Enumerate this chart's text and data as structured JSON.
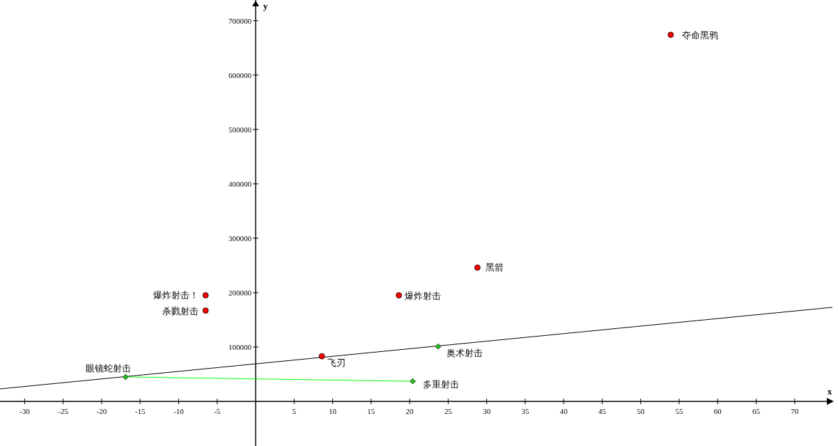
{
  "chart_data": {
    "type": "scatter",
    "xlabel": "x",
    "ylabel": "y",
    "xlim": [
      -33.2,
      74.9
    ],
    "ylim": [
      -82000,
      738000
    ],
    "xticks": [
      -30,
      -25,
      -20,
      -15,
      -10,
      -5,
      5,
      10,
      15,
      20,
      25,
      30,
      35,
      40,
      45,
      50,
      55,
      60,
      65,
      70
    ],
    "yticks": [
      100000,
      200000,
      300000,
      400000,
      500000,
      600000,
      700000
    ],
    "grid": false,
    "series": [
      {
        "type": "line",
        "color": "#000000",
        "x": [
          -33.2,
          74.9
        ],
        "values": [
          23000,
          173000
        ],
        "marker": "none"
      },
      {
        "type": "line",
        "color": "#00ff00",
        "x": [
          -16.9,
          20.4
        ],
        "values": [
          45000,
          37000
        ],
        "marker": "none"
      },
      {
        "color": "#ff0000",
        "marker": "circle",
        "x": [
          53.9,
          28.8,
          18.6,
          -6.5,
          -6.5,
          8.6
        ],
        "values": [
          674000,
          246000,
          195000,
          195000,
          167000,
          83000
        ]
      },
      {
        "color": "#22bb22",
        "marker": "diamond",
        "x": [
          -16.9,
          23.7,
          20.4
        ],
        "values": [
          45000,
          101000,
          37000
        ]
      }
    ],
    "annotations": [
      {
        "text": "夺命黑鸦",
        "x": 53.9,
        "y": 674000
      },
      {
        "text": "黑箭",
        "x": 28.8,
        "y": 246000
      },
      {
        "text": "爆炸射击",
        "x": 18.6,
        "y": 195000
      },
      {
        "text": "爆炸射击！",
        "x": -6.5,
        "y": 195000
      },
      {
        "text": "杀戮射击",
        "x": -6.5,
        "y": 167000
      },
      {
        "text": "飞刃",
        "x": 8.6,
        "y": 83000
      },
      {
        "text": "眼镜蛇射击",
        "x": -16.9,
        "y": 45000
      },
      {
        "text": "奥术射击",
        "x": 23.7,
        "y": 101000
      },
      {
        "text": "多重射击",
        "x": 20.4,
        "y": 37000
      }
    ]
  }
}
